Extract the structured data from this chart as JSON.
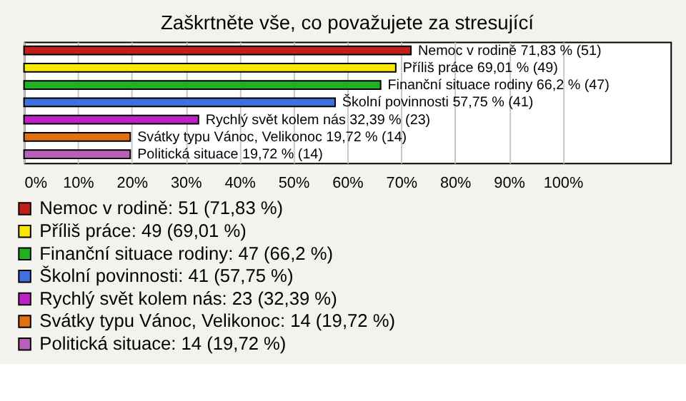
{
  "chart_data": {
    "type": "bar",
    "orientation": "horizontal",
    "title": "Zaškrtněte vše, co považujete za stresující",
    "categories": [
      null,
      null,
      null,
      null,
      null,
      null,
      null
    ],
    "series": [
      {
        "name": "Nemoc v rodině: 51 (71,83 %)",
        "color": "#c0201a",
        "values": [
          71.83,
          null,
          null,
          null,
          null,
          null,
          null
        ],
        "value_labels": [
          "Nemoc v rodině 71,83 % (51)",
          null,
          null,
          null,
          null,
          null,
          null
        ]
      },
      {
        "name": "Příliš práce: 49 (69,01 %)",
        "color": "#f8e800",
        "values": [
          null,
          69.01,
          null,
          null,
          null,
          null,
          null
        ],
        "value_labels": [
          null,
          "Příliš práce 69,01 % (49)",
          null,
          null,
          null,
          null,
          null
        ]
      },
      {
        "name": "Finanční situace rodiny: 47 (66,2 %)",
        "color": "#20b020",
        "values": [
          null,
          null,
          66.2,
          null,
          null,
          null,
          null
        ],
        "value_labels": [
          null,
          null,
          "Finanční situace rodiny 66,2 % (47)",
          null,
          null,
          null,
          null
        ]
      },
      {
        "name": "Školní povinnosti: 41 (57,75 %)",
        "color": "#4070e0",
        "values": [
          null,
          null,
          null,
          57.75,
          null,
          null,
          null
        ],
        "value_labels": [
          null,
          null,
          null,
          "Školní povinnosti 57,75 % (41)",
          null,
          null,
          null
        ]
      },
      {
        "name": "Rychlý svět kolem nás: 23 (32,39 %)",
        "color": "#c020c8",
        "values": [
          null,
          null,
          null,
          null,
          32.39,
          null,
          null
        ],
        "value_labels": [
          null,
          null,
          null,
          null,
          "Rychlý svět kolem nás 32,39 % (23)",
          null,
          null
        ]
      },
      {
        "name": "Svátky typu Vánoc, Velikonoc: 14 (19,72 %)",
        "color": "#e07010",
        "values": [
          null,
          null,
          null,
          null,
          null,
          19.72,
          null
        ],
        "value_labels": [
          null,
          null,
          null,
          null,
          null,
          "Svátky typu Vánoc, Velikonoc 19,72 % (14)",
          null
        ]
      },
      {
        "name": "Politická situace: 14 (19,72 %)",
        "color": "#b860b8",
        "values": [
          null,
          null,
          null,
          null,
          null,
          null,
          19.72
        ],
        "value_labels": [
          null,
          null,
          null,
          null,
          null,
          null,
          "Politická situace 19,72 % (14)"
        ]
      }
    ],
    "xlim": [
      0,
      120
    ],
    "xticks": [
      {
        "value": 0,
        "label": "0%"
      },
      {
        "value": 10,
        "label": "10%"
      },
      {
        "value": 20,
        "label": "20%"
      },
      {
        "value": 30,
        "label": "30%"
      },
      {
        "value": 40,
        "label": "40%"
      },
      {
        "value": 50,
        "label": "50%"
      },
      {
        "value": 60,
        "label": "60%"
      },
      {
        "value": 70,
        "label": "70%"
      },
      {
        "value": 80,
        "label": "80%"
      },
      {
        "value": 90,
        "label": "90%"
      },
      {
        "value": 100,
        "label": "100%"
      }
    ],
    "grid": "x",
    "legend": "bottom",
    "tick_labels": "x"
  }
}
